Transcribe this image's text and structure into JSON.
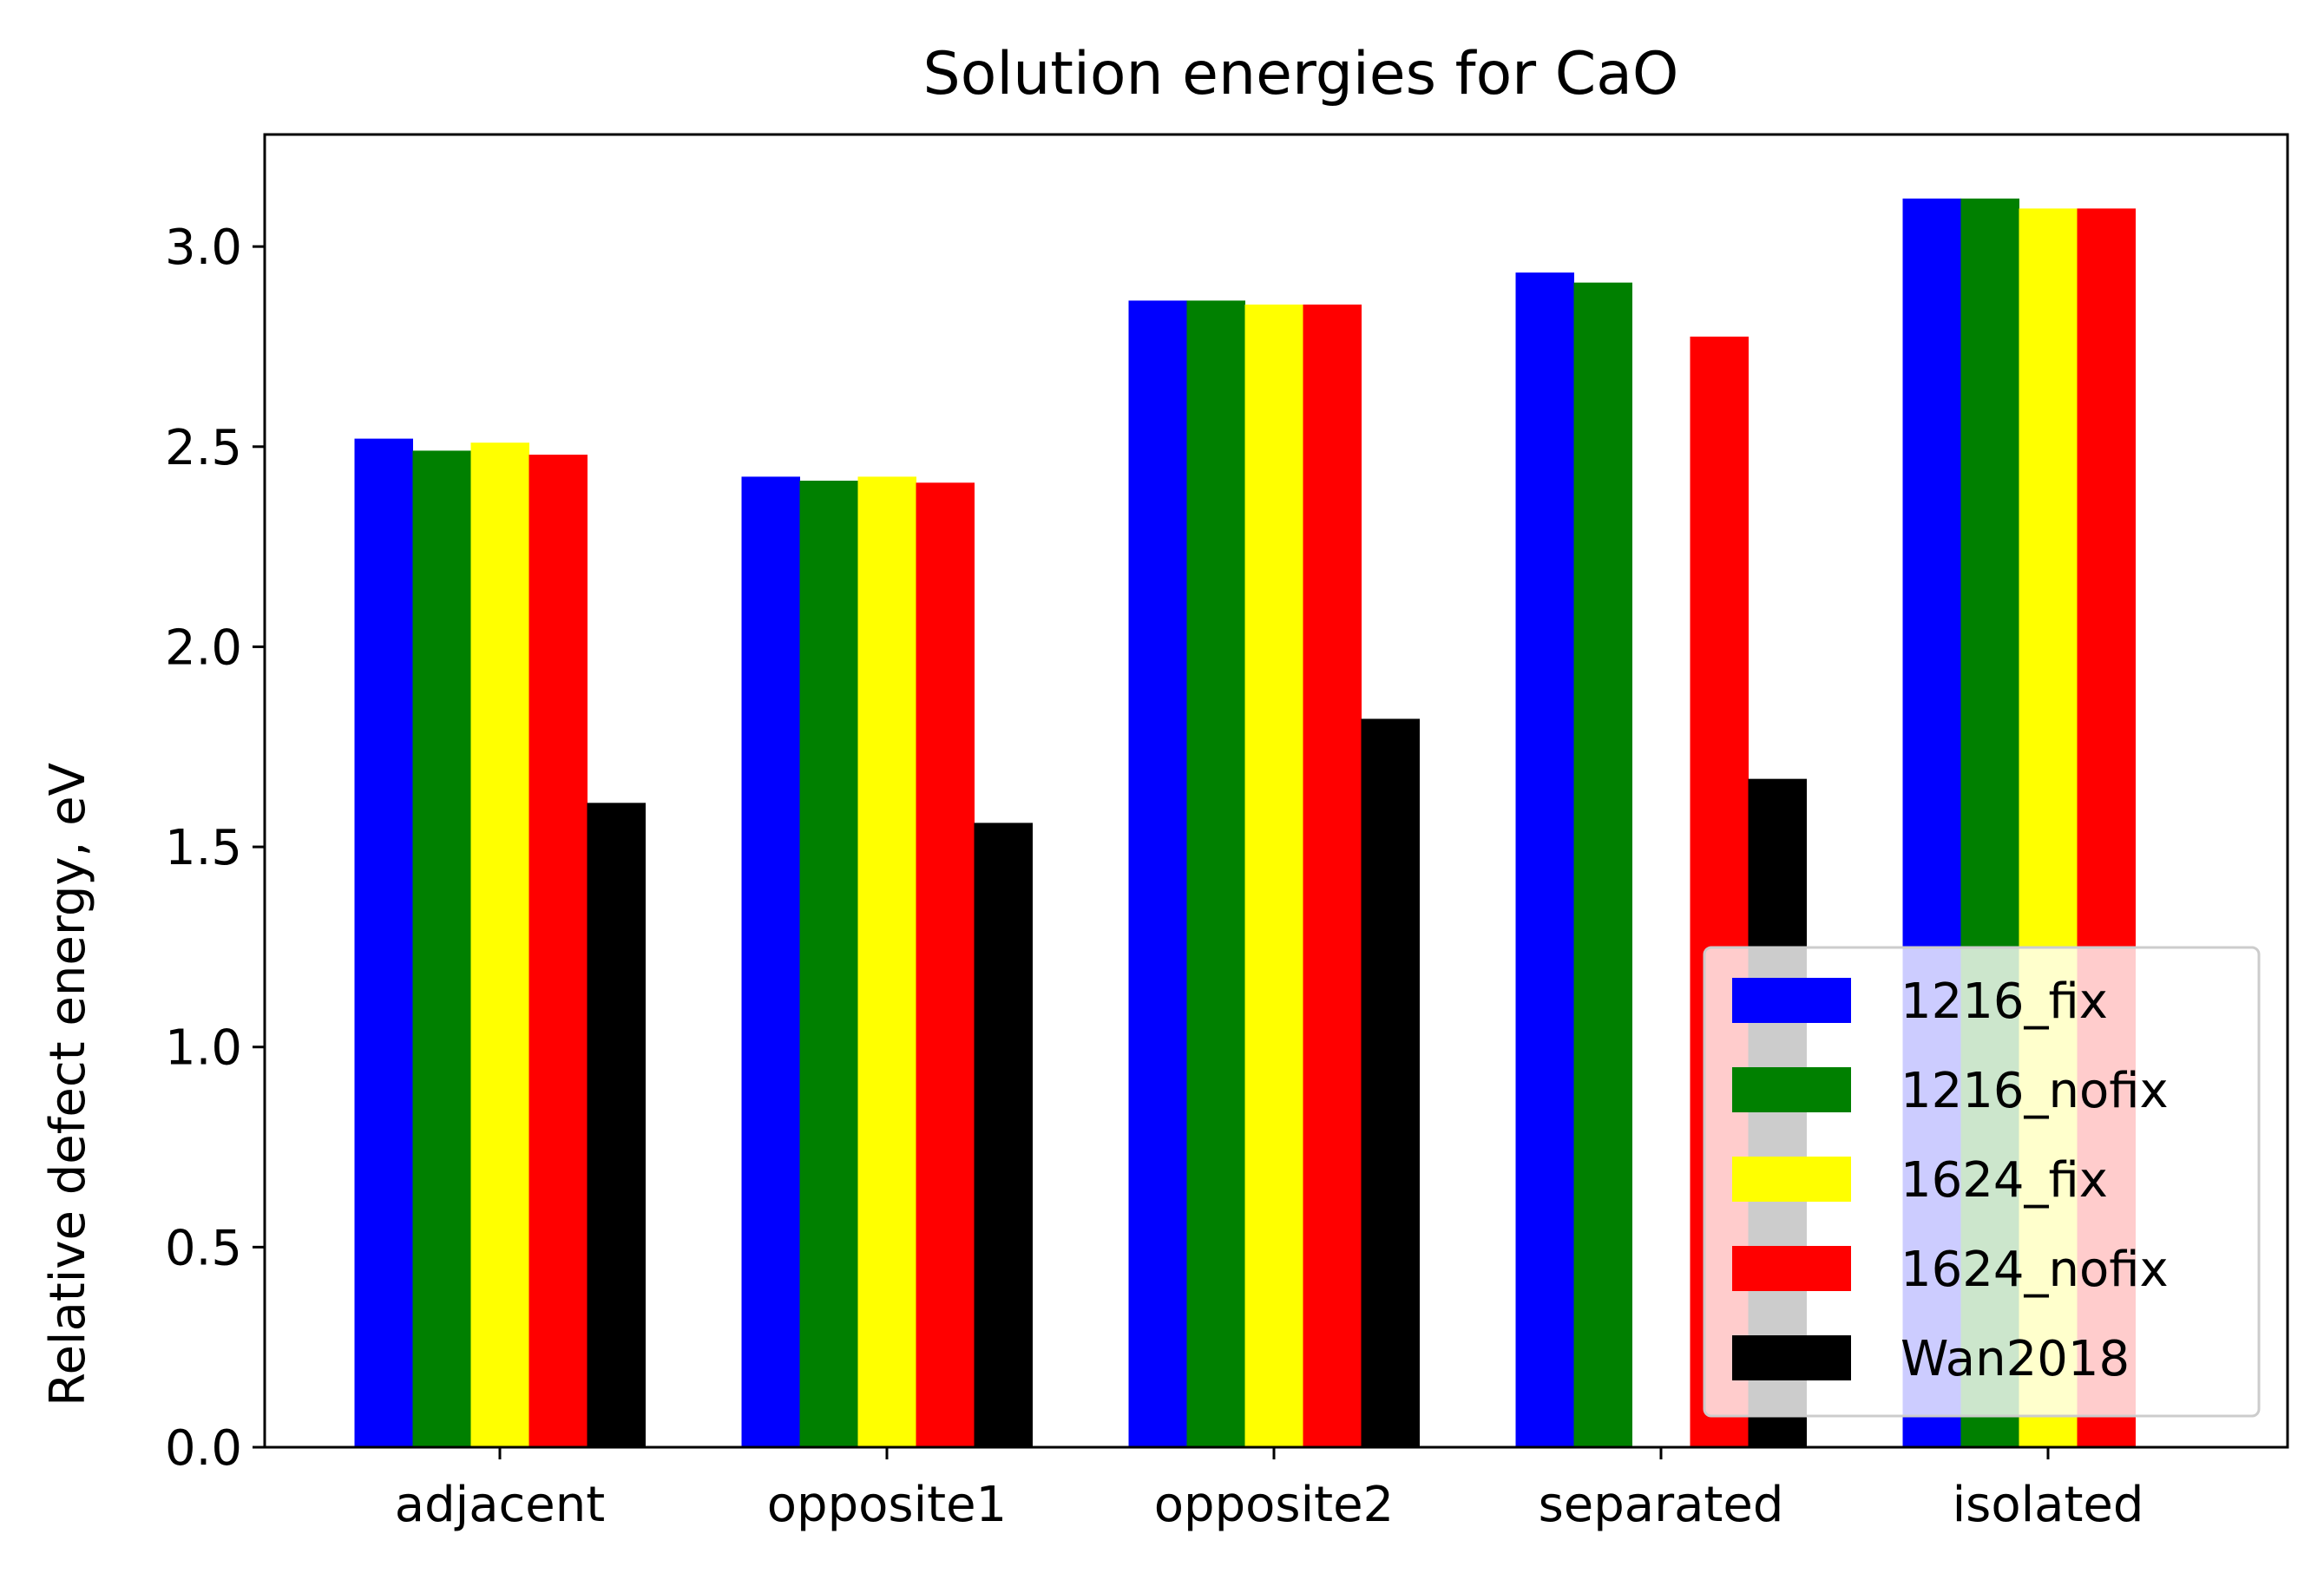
{
  "chart_data": {
    "type": "bar",
    "title": "Solution energies for CaO",
    "xlabel": "",
    "ylabel": "Relative defect energy, eV",
    "categories": [
      "adjacent",
      "opposite1",
      "opposite2",
      "separated",
      "isolated"
    ],
    "ylim": [
      0,
      3.28
    ],
    "yticks": [
      "0.0",
      "0.5",
      "1.0",
      "1.5",
      "2.0",
      "2.5",
      "3.0"
    ],
    "grid": false,
    "legend_position": "lower-right",
    "series": [
      {
        "name": "1216_fix",
        "color": "#0000ff",
        "values": [
          2.52,
          2.425,
          2.865,
          2.935,
          3.12
        ]
      },
      {
        "name": "1216_nofix",
        "color": "#008000",
        "values": [
          2.49,
          2.415,
          2.865,
          2.91,
          3.12
        ]
      },
      {
        "name": "1624_fix",
        "color": "#ffff00",
        "values": [
          2.51,
          2.425,
          2.855,
          null,
          3.095
        ]
      },
      {
        "name": "1624_nofix",
        "color": "#ff0000",
        "values": [
          2.48,
          2.41,
          2.855,
          2.775,
          3.095
        ]
      },
      {
        "name": "Wan2018",
        "color": "#000000",
        "values": [
          1.61,
          1.56,
          1.82,
          1.67,
          null
        ]
      }
    ]
  }
}
